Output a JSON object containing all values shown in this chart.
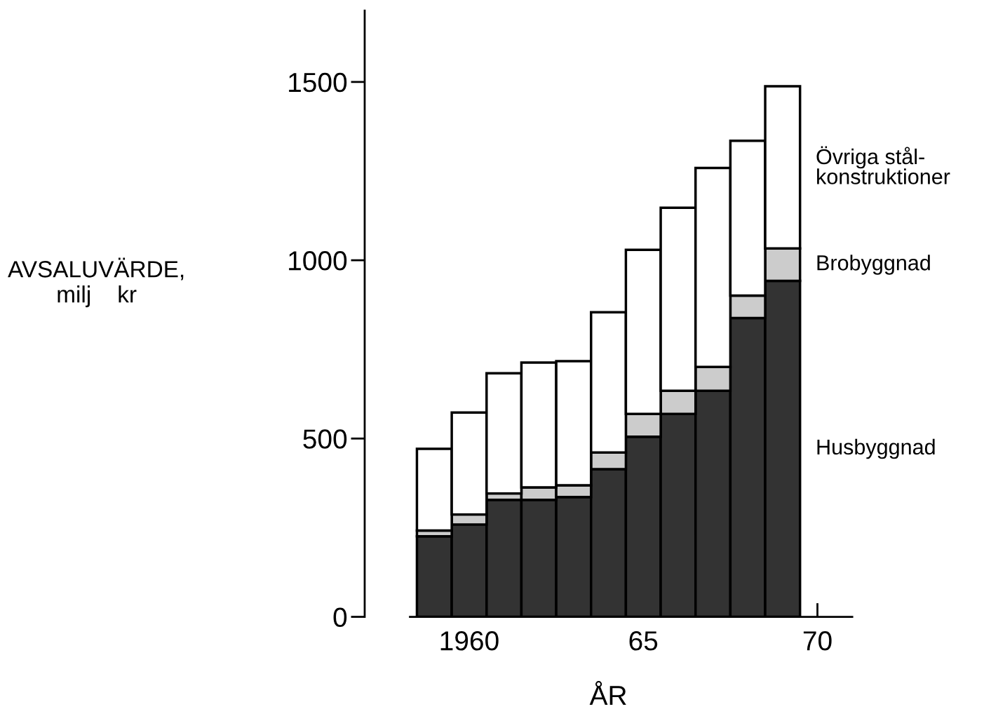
{
  "chart_data": {
    "type": "bar",
    "stacked": true,
    "xlabel": "ÅR",
    "ylabel": "AVSALUVÄRDE,\nmilj    kr",
    "x": [
      1959,
      1960,
      1961,
      1962,
      1963,
      1964,
      1965,
      1966,
      1967,
      1968,
      1969
    ],
    "series": [
      {
        "name": "Husbyggnad",
        "color": "#333333",
        "values": [
          226,
          259,
          328,
          328,
          336,
          414,
          505,
          569,
          634,
          838,
          942
        ]
      },
      {
        "name": "Brobyggnad",
        "color": "#cccccc",
        "values": [
          16,
          28,
          18,
          35,
          33,
          47,
          64,
          65,
          67,
          63,
          91
        ]
      },
      {
        "name": "Övriga stål-\nkonstruktioner",
        "color": "#ffffff",
        "values": [
          229,
          286,
          337,
          350,
          348,
          393,
          460,
          513,
          558,
          434,
          455
        ]
      }
    ],
    "xlim": [
      1957,
      1971
    ],
    "xticks": [
      {
        "value": 1960,
        "label": "1960"
      },
      {
        "value": 1965,
        "label": "65"
      },
      {
        "value": 1970,
        "label": "70"
      }
    ],
    "ylim": [
      0,
      1700
    ],
    "yticks": [
      0,
      500,
      1000,
      1500
    ],
    "grid": false
  }
}
